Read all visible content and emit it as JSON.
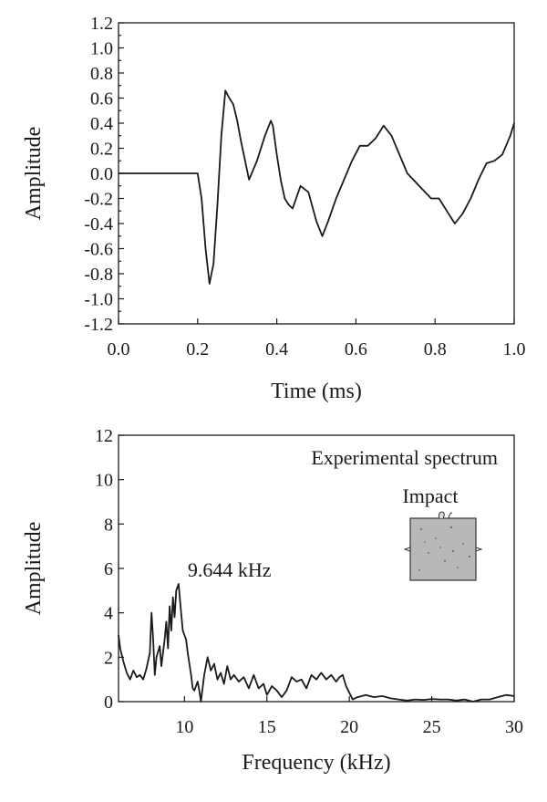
{
  "chart_data": [
    {
      "type": "line",
      "title": "",
      "xlabel": "Time (ms)",
      "ylabel": "Amplitude",
      "xlim": [
        0.0,
        1.0
      ],
      "ylim": [
        -1.2,
        1.2
      ],
      "x_ticks": [
        "0.0",
        "0.2",
        "0.4",
        "0.6",
        "0.8",
        "1.0"
      ],
      "y_ticks": [
        "-1.2",
        "-1.0",
        "-0.8",
        "-0.6",
        "-0.4",
        "-0.2",
        "0.0",
        "0.2",
        "0.4",
        "0.6",
        "0.8",
        "1.0",
        "1.2"
      ],
      "grid": false,
      "series": [
        {
          "x": [
            0.0,
            0.19,
            0.2,
            0.21,
            0.22,
            0.23,
            0.24,
            0.25,
            0.26,
            0.27,
            0.28,
            0.29,
            0.3,
            0.31,
            0.33,
            0.35,
            0.37,
            0.385,
            0.39,
            0.4,
            0.41,
            0.42,
            0.43,
            0.44,
            0.46,
            0.48,
            0.5,
            0.515,
            0.53,
            0.55,
            0.57,
            0.59,
            0.61,
            0.63,
            0.65,
            0.67,
            0.69,
            0.71,
            0.73,
            0.76,
            0.79,
            0.81,
            0.83,
            0.85,
            0.87,
            0.89,
            0.91,
            0.93,
            0.95,
            0.97,
            0.99,
            1.0
          ],
          "y": [
            0.0,
            0.0,
            0.0,
            -0.2,
            -0.6,
            -0.88,
            -0.72,
            -0.25,
            0.3,
            0.66,
            0.6,
            0.55,
            0.42,
            0.25,
            -0.05,
            0.1,
            0.3,
            0.42,
            0.38,
            0.15,
            -0.05,
            -0.2,
            -0.25,
            -0.28,
            -0.1,
            -0.15,
            -0.38,
            -0.5,
            -0.38,
            -0.2,
            -0.05,
            0.1,
            0.22,
            0.22,
            0.28,
            0.38,
            0.3,
            0.15,
            0.0,
            -0.1,
            -0.2,
            -0.2,
            -0.3,
            -0.4,
            -0.32,
            -0.2,
            -0.05,
            0.08,
            0.1,
            0.15,
            0.3,
            0.4
          ]
        }
      ]
    },
    {
      "type": "line",
      "title": "",
      "xlabel": "Frequency (kHz)",
      "ylabel": "Amplitude",
      "xlim": [
        6,
        30
      ],
      "ylim": [
        0,
        12
      ],
      "x_ticks": [
        "10",
        "15",
        "20",
        "25",
        "30"
      ],
      "y_ticks": [
        "0",
        "2",
        "4",
        "6",
        "8",
        "10",
        "12"
      ],
      "grid": false,
      "legend_text": "Experimental spectrum",
      "inset_label": "Impact",
      "peak_annotation": {
        "text": "9.644 kHz",
        "x": 9.644,
        "y": 5.3
      },
      "series": [
        {
          "x": [
            6.0,
            6.1,
            6.3,
            6.5,
            6.7,
            6.9,
            7.1,
            7.3,
            7.5,
            7.7,
            7.9,
            8.0,
            8.1,
            8.2,
            8.3,
            8.5,
            8.6,
            8.8,
            8.9,
            9.0,
            9.1,
            9.2,
            9.3,
            9.4,
            9.5,
            9.644,
            9.8,
            9.9,
            10.0,
            10.1,
            10.2,
            10.4,
            10.5,
            10.6,
            10.8,
            10.9,
            11.0,
            11.2,
            11.4,
            11.6,
            11.8,
            12.0,
            12.2,
            12.4,
            12.6,
            12.8,
            13.0,
            13.3,
            13.6,
            13.9,
            14.2,
            14.5,
            14.8,
            15.0,
            15.3,
            15.6,
            15.9,
            16.2,
            16.5,
            16.8,
            17.1,
            17.4,
            17.7,
            18.0,
            18.3,
            18.6,
            18.9,
            19.2,
            19.4,
            19.6,
            19.8,
            20.0,
            20.2,
            20.5,
            21.0,
            21.5,
            22.0,
            22.5,
            23.0,
            23.5,
            24.0,
            24.5,
            25.0,
            25.5,
            26.0,
            26.5,
            27.0,
            27.5,
            28.0,
            28.5,
            29.0,
            29.5,
            30.0
          ],
          "y": [
            3.0,
            2.4,
            1.8,
            1.3,
            1.0,
            1.4,
            1.1,
            1.2,
            1.0,
            1.5,
            2.2,
            4.0,
            2.8,
            1.2,
            2.0,
            2.5,
            1.6,
            2.8,
            3.6,
            2.4,
            4.3,
            3.2,
            4.7,
            3.8,
            5.0,
            5.3,
            4.0,
            3.2,
            3.0,
            2.8,
            2.2,
            1.2,
            0.6,
            0.5,
            0.9,
            0.5,
            0.0,
            1.2,
            2.0,
            1.4,
            1.7,
            1.0,
            1.3,
            0.8,
            1.6,
            1.0,
            1.2,
            0.9,
            1.1,
            0.6,
            1.2,
            0.6,
            0.8,
            0.3,
            0.7,
            0.5,
            0.2,
            0.5,
            1.1,
            0.9,
            1.0,
            0.6,
            1.2,
            1.0,
            1.3,
            1.0,
            1.2,
            0.9,
            1.1,
            1.2,
            0.7,
            0.4,
            0.1,
            0.2,
            0.3,
            0.2,
            0.25,
            0.15,
            0.1,
            0.05,
            0.1,
            0.08,
            0.12,
            0.1,
            0.1,
            0.05,
            0.1,
            0.0,
            0.1,
            0.1,
            0.2,
            0.3,
            0.25
          ]
        }
      ]
    }
  ]
}
